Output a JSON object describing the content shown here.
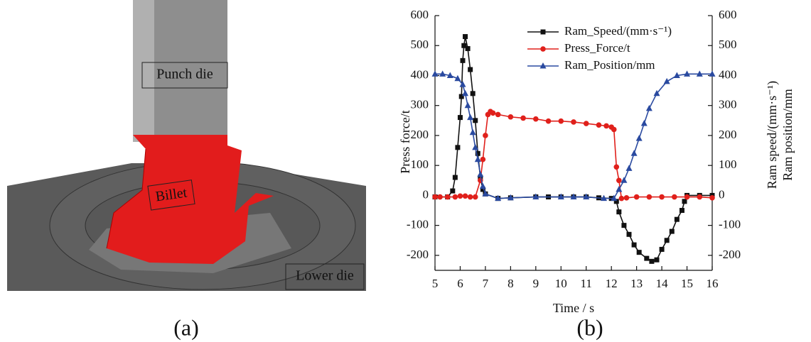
{
  "panel_a": {
    "labels": [
      "Punch die",
      "Billet",
      "Lower die"
    ],
    "caption": "(a)"
  },
  "chart_data": {
    "type": "line",
    "caption": "(b)",
    "x_label": "Time / s",
    "y_label": "Press force/t",
    "y2_label": [
      "Ram speed/(mm·s⁻¹)",
      "Ram position/mm"
    ],
    "xlim": [
      5,
      16
    ],
    "xticks": [
      5,
      6,
      7,
      8,
      9,
      10,
      11,
      12,
      13,
      14,
      15,
      16
    ],
    "ylim": [
      -250,
      600
    ],
    "yticks": [
      -200,
      -100,
      0,
      100,
      200,
      300,
      400,
      500,
      600
    ],
    "y2lim": [
      -250,
      600
    ],
    "y2ticks": [
      -200,
      -100,
      0,
      100,
      200,
      300,
      400,
      500,
      600
    ],
    "legend": "upper center",
    "series": [
      {
        "name": "Ram_Speed/(mm·s⁻¹)",
        "color": "#111111",
        "marker": "square",
        "axis": "y2",
        "x": [
          5,
          5.5,
          5.7,
          5.8,
          5.9,
          6.0,
          6.05,
          6.1,
          6.15,
          6.2,
          6.3,
          6.4,
          6.5,
          6.6,
          6.7,
          6.8,
          6.9,
          7.0,
          7.5,
          8,
          9,
          9.5,
          10,
          10.5,
          11,
          11.5,
          12,
          12.2,
          12.3,
          12.5,
          12.7,
          12.9,
          13.1,
          13.4,
          13.6,
          13.8,
          14,
          14.2,
          14.4,
          14.6,
          14.8,
          14.9,
          15,
          15.5,
          16
        ],
        "values": [
          -5,
          -5,
          15,
          60,
          160,
          260,
          330,
          450,
          500,
          530,
          490,
          420,
          340,
          250,
          140,
          60,
          20,
          5,
          -10,
          -8,
          -5,
          -5,
          -5,
          -5,
          -5,
          -8,
          -10,
          -20,
          -55,
          -100,
          -130,
          -165,
          -190,
          -210,
          -220,
          -215,
          -180,
          -150,
          -120,
          -80,
          -50,
          -20,
          0,
          0,
          0
        ]
      },
      {
        "name": "Press_Force/t",
        "color": "#e0201b",
        "marker": "circle",
        "axis": "y",
        "x": [
          5,
          5.2,
          5.5,
          5.8,
          6,
          6.2,
          6.4,
          6.6,
          6.8,
          6.9,
          7.0,
          7.1,
          7.2,
          7.3,
          7.5,
          8,
          8.5,
          9,
          9.5,
          10,
          10.5,
          11,
          11.5,
          11.8,
          12,
          12.1,
          12.2,
          12.3,
          12.4,
          12.6,
          13,
          13.5,
          14,
          14.5,
          15,
          15.5,
          16
        ],
        "values": [
          -5,
          -5,
          -5,
          -5,
          -2,
          -2,
          -5,
          -5,
          50,
          120,
          200,
          270,
          280,
          275,
          270,
          262,
          258,
          255,
          248,
          248,
          245,
          240,
          235,
          232,
          228,
          220,
          95,
          50,
          -10,
          -8,
          -5,
          -5,
          -5,
          -5,
          -5,
          -5,
          -8
        ]
      },
      {
        "name": "Ram_Position/mm",
        "color": "#2a4aa0",
        "marker": "triangle",
        "axis": "y2",
        "x": [
          5,
          5.3,
          5.6,
          5.9,
          6.1,
          6.2,
          6.3,
          6.4,
          6.5,
          6.6,
          6.7,
          6.8,
          6.9,
          7.0,
          7.5,
          8,
          9,
          10,
          10.5,
          11,
          11.7,
          12.1,
          12.3,
          12.5,
          12.7,
          12.9,
          13.1,
          13.3,
          13.5,
          13.8,
          14.2,
          14.6,
          15,
          15.5,
          16
        ],
        "values": [
          405,
          405,
          400,
          390,
          370,
          340,
          300,
          260,
          210,
          160,
          120,
          70,
          30,
          5,
          -10,
          -8,
          -5,
          -5,
          -5,
          -5,
          -10,
          -10,
          20,
          50,
          90,
          140,
          190,
          240,
          290,
          340,
          380,
          400,
          405,
          405,
          405
        ]
      }
    ]
  }
}
